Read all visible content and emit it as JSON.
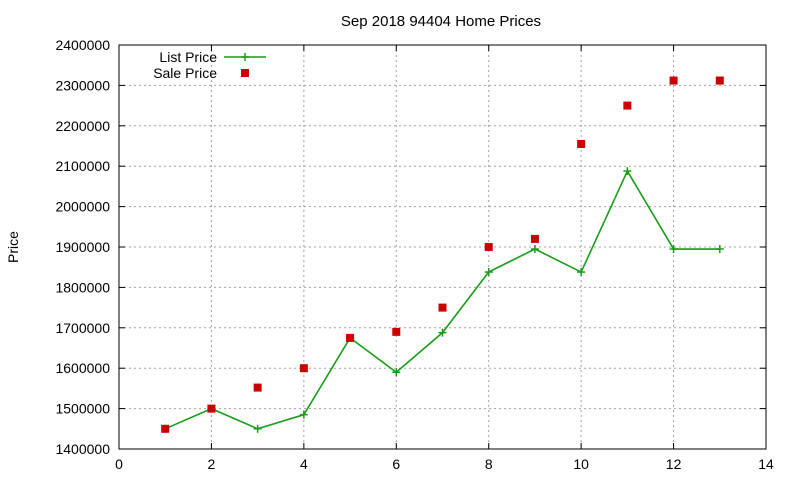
{
  "chart_data": {
    "type": "line",
    "title": "Sep 2018 94404 Home Prices",
    "xlabel": "",
    "ylabel": "Price",
    "xlim": [
      0,
      14
    ],
    "ylim": [
      1400000,
      2400000
    ],
    "xticks": [
      0,
      2,
      4,
      6,
      8,
      10,
      12,
      14
    ],
    "yticks": [
      1400000,
      1500000,
      1600000,
      1700000,
      1800000,
      1900000,
      2000000,
      2100000,
      2200000,
      2300000,
      2400000
    ],
    "grid": true,
    "legend_position": "top-left",
    "series": [
      {
        "name": "List Price",
        "kind": "line-points",
        "marker": "plus",
        "color": "#1a9c1a",
        "x": [
          1,
          2,
          3,
          4,
          5,
          6,
          7,
          8,
          9,
          10,
          11,
          12,
          13
        ],
        "y": [
          1450000,
          1500000,
          1450000,
          1485000,
          1675000,
          1590000,
          1688000,
          1838000,
          1895000,
          1838000,
          2088000,
          1895000,
          1895000
        ]
      },
      {
        "name": "Sale Price",
        "kind": "points",
        "marker": "square",
        "color": "#cc0000",
        "x": [
          1,
          2,
          3,
          4,
          5,
          6,
          7,
          8,
          9,
          10,
          11,
          12,
          13
        ],
        "y": [
          1450000,
          1500000,
          1552000,
          1600000,
          1675000,
          1690000,
          1750000,
          1900000,
          1920000,
          2155000,
          2250000,
          2312000,
          2312000
        ]
      }
    ]
  }
}
